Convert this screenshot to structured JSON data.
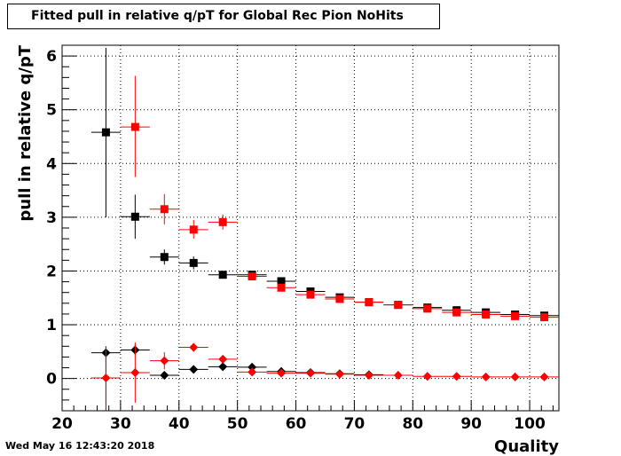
{
  "title": "Fitted pull in relative q/pT for Global Rec Pion NoHits",
  "datestamp": "Wed May 16 12:43:20 2018",
  "chart_data": {
    "type": "scatter",
    "xlabel": "Quality",
    "ylabel": "pull in relative q/pT",
    "xlim": [
      20,
      105
    ],
    "ylim": [
      -0.6,
      6.2
    ],
    "xticks": [
      20,
      30,
      40,
      50,
      60,
      70,
      80,
      90,
      100
    ],
    "yticks": [
      0,
      1,
      2,
      3,
      4,
      5,
      6
    ],
    "grid": true,
    "series": [
      {
        "marker": "square",
        "color": "#000000",
        "points": [
          {
            "x": 27.5,
            "y": 4.58,
            "ylo": 3.0,
            "yhi": 6.15
          },
          {
            "x": 32.5,
            "y": 3.01,
            "ylo": 2.6,
            "yhi": 3.42
          },
          {
            "x": 37.5,
            "y": 2.26,
            "ylo": 2.12,
            "yhi": 2.4
          },
          {
            "x": 42.5,
            "y": 2.15,
            "ylo": 2.03,
            "yhi": 2.27
          },
          {
            "x": 47.5,
            "y": 1.93,
            "ylo": 1.87,
            "yhi": 1.99
          },
          {
            "x": 52.5,
            "y": 1.93,
            "ylo": 1.89,
            "yhi": 1.97
          },
          {
            "x": 57.5,
            "y": 1.81,
            "ylo": 1.77,
            "yhi": 1.85
          },
          {
            "x": 62.5,
            "y": 1.62,
            "ylo": 1.59,
            "yhi": 1.65
          },
          {
            "x": 67.5,
            "y": 1.51,
            "ylo": 1.49,
            "yhi": 1.53
          },
          {
            "x": 72.5,
            "y": 1.42,
            "ylo": 1.4,
            "yhi": 1.44
          },
          {
            "x": 77.5,
            "y": 1.37,
            "ylo": 1.35,
            "yhi": 1.39
          },
          {
            "x": 82.5,
            "y": 1.32,
            "ylo": 1.3,
            "yhi": 1.34
          },
          {
            "x": 87.5,
            "y": 1.27,
            "ylo": 1.25,
            "yhi": 1.29
          },
          {
            "x": 92.5,
            "y": 1.23,
            "ylo": 1.21,
            "yhi": 1.25
          },
          {
            "x": 97.5,
            "y": 1.19,
            "ylo": 1.17,
            "yhi": 1.21
          },
          {
            "x": 102.5,
            "y": 1.17,
            "ylo": 1.15,
            "yhi": 1.19
          }
        ]
      },
      {
        "marker": "square",
        "color": "#ff0000",
        "points": [
          {
            "x": 32.5,
            "y": 4.68,
            "ylo": 3.75,
            "yhi": 5.63
          },
          {
            "x": 37.5,
            "y": 3.15,
            "ylo": 2.87,
            "yhi": 3.43
          },
          {
            "x": 42.5,
            "y": 2.77,
            "ylo": 2.6,
            "yhi": 2.95
          },
          {
            "x": 47.5,
            "y": 2.91,
            "ylo": 2.77,
            "yhi": 3.05
          },
          {
            "x": 52.5,
            "y": 1.9,
            "ylo": 1.84,
            "yhi": 1.96
          },
          {
            "x": 57.5,
            "y": 1.69,
            "ylo": 1.65,
            "yhi": 1.73
          },
          {
            "x": 62.5,
            "y": 1.56,
            "ylo": 1.53,
            "yhi": 1.59
          },
          {
            "x": 67.5,
            "y": 1.48,
            "ylo": 1.46,
            "yhi": 1.5
          },
          {
            "x": 72.5,
            "y": 1.42,
            "ylo": 1.4,
            "yhi": 1.44
          },
          {
            "x": 77.5,
            "y": 1.37,
            "ylo": 1.35,
            "yhi": 1.39
          },
          {
            "x": 82.5,
            "y": 1.3,
            "ylo": 1.28,
            "yhi": 1.32
          },
          {
            "x": 87.5,
            "y": 1.23,
            "ylo": 1.21,
            "yhi": 1.25
          },
          {
            "x": 92.5,
            "y": 1.19,
            "ylo": 1.17,
            "yhi": 1.21
          },
          {
            "x": 97.5,
            "y": 1.16,
            "ylo": 1.14,
            "yhi": 1.18
          },
          {
            "x": 102.5,
            "y": 1.14,
            "ylo": 1.12,
            "yhi": 1.16
          }
        ]
      },
      {
        "marker": "diamond",
        "color": "#000000",
        "points": [
          {
            "x": 27.5,
            "y": 0.48,
            "ylo": -0.6,
            "yhi": 0.6
          },
          {
            "x": 32.5,
            "y": 0.53,
            "ylo": 0.43,
            "yhi": 0.63
          },
          {
            "x": 37.5,
            "y": 0.06,
            "ylo": -0.01,
            "yhi": 0.13
          },
          {
            "x": 42.5,
            "y": 0.17,
            "ylo": 0.13,
            "yhi": 0.21
          },
          {
            "x": 47.5,
            "y": 0.22,
            "ylo": 0.19,
            "yhi": 0.25
          },
          {
            "x": 52.5,
            "y": 0.21,
            "ylo": 0.19,
            "yhi": 0.23
          },
          {
            "x": 57.5,
            "y": 0.13,
            "ylo": 0.11,
            "yhi": 0.15
          },
          {
            "x": 62.5,
            "y": 0.11,
            "ylo": 0.09,
            "yhi": 0.13
          },
          {
            "x": 67.5,
            "y": 0.09,
            "ylo": 0.08,
            "yhi": 0.1
          },
          {
            "x": 72.5,
            "y": 0.07,
            "ylo": 0.06,
            "yhi": 0.08
          }
        ]
      },
      {
        "marker": "diamond",
        "color": "#ff0000",
        "points": [
          {
            "x": 27.5,
            "y": 0.01,
            "ylo": -0.6,
            "yhi": 0.6
          },
          {
            "x": 32.5,
            "y": 0.11,
            "ylo": -0.45,
            "yhi": 0.67
          },
          {
            "x": 37.5,
            "y": 0.33,
            "ylo": 0.17,
            "yhi": 0.49
          },
          {
            "x": 42.5,
            "y": 0.58,
            "ylo": 0.5,
            "yhi": 0.66
          },
          {
            "x": 47.5,
            "y": 0.36,
            "ylo": 0.31,
            "yhi": 0.41
          },
          {
            "x": 52.5,
            "y": 0.12,
            "ylo": 0.09,
            "yhi": 0.15
          },
          {
            "x": 57.5,
            "y": 0.1,
            "ylo": 0.08,
            "yhi": 0.12
          },
          {
            "x": 62.5,
            "y": 0.1,
            "ylo": 0.08,
            "yhi": 0.12
          },
          {
            "x": 67.5,
            "y": 0.08,
            "ylo": 0.07,
            "yhi": 0.09
          },
          {
            "x": 72.5,
            "y": 0.06,
            "ylo": 0.05,
            "yhi": 0.07
          },
          {
            "x": 77.5,
            "y": 0.06,
            "ylo": 0.05,
            "yhi": 0.07
          },
          {
            "x": 82.5,
            "y": 0.04,
            "ylo": 0.03,
            "yhi": 0.05
          },
          {
            "x": 87.5,
            "y": 0.04,
            "ylo": 0.03,
            "yhi": 0.05
          },
          {
            "x": 92.5,
            "y": 0.03,
            "ylo": 0.02,
            "yhi": 0.04
          },
          {
            "x": 97.5,
            "y": 0.03,
            "ylo": 0.02,
            "yhi": 0.04
          },
          {
            "x": 102.5,
            "y": 0.03,
            "ylo": 0.02,
            "yhi": 0.04
          }
        ]
      }
    ]
  }
}
